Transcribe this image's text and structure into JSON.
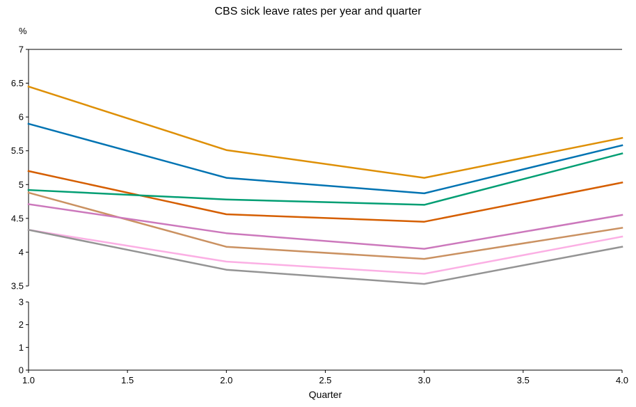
{
  "chart_data": {
    "type": "line",
    "title": "CBS sick leave rates per year and quarter",
    "ylabel": "%",
    "xlabel": "Quarter",
    "xlim": [
      1.0,
      4.0
    ],
    "x_ticks": [
      "1.0",
      "1.5",
      "2.0",
      "2.5",
      "3.0",
      "3.5",
      "4.0"
    ],
    "y_upper": {
      "ylim": [
        3.5,
        7
      ],
      "ticks": [
        "3.5",
        "4",
        "4.5",
        "5",
        "5.5",
        "6",
        "6.5",
        "7"
      ]
    },
    "y_lower": {
      "ylim": [
        0,
        3
      ],
      "ticks": [
        "0",
        "1",
        "2",
        "3"
      ]
    },
    "broken_axis": true,
    "grid": false,
    "x": [
      1,
      2,
      3,
      4
    ],
    "series": [
      {
        "color": "#de8f05",
        "values": [
          6.45,
          5.51,
          5.1,
          5.69
        ]
      },
      {
        "color": "#0173b2",
        "values": [
          5.9,
          5.1,
          4.87,
          5.58
        ]
      },
      {
        "color": "#d55e00",
        "values": [
          5.2,
          4.56,
          4.45,
          5.03
        ]
      },
      {
        "color": "#029e73",
        "values": [
          4.92,
          4.78,
          4.7,
          5.46
        ]
      },
      {
        "color": "#ca9161",
        "values": [
          4.88,
          4.08,
          3.9,
          4.36
        ]
      },
      {
        "color": "#cc78bc",
        "values": [
          4.71,
          4.28,
          4.05,
          4.55
        ]
      },
      {
        "color": "#fbafe4",
        "values": [
          4.33,
          3.86,
          3.68,
          4.23
        ]
      },
      {
        "color": "#949494",
        "values": [
          4.33,
          3.74,
          3.53,
          4.08
        ]
      }
    ]
  }
}
